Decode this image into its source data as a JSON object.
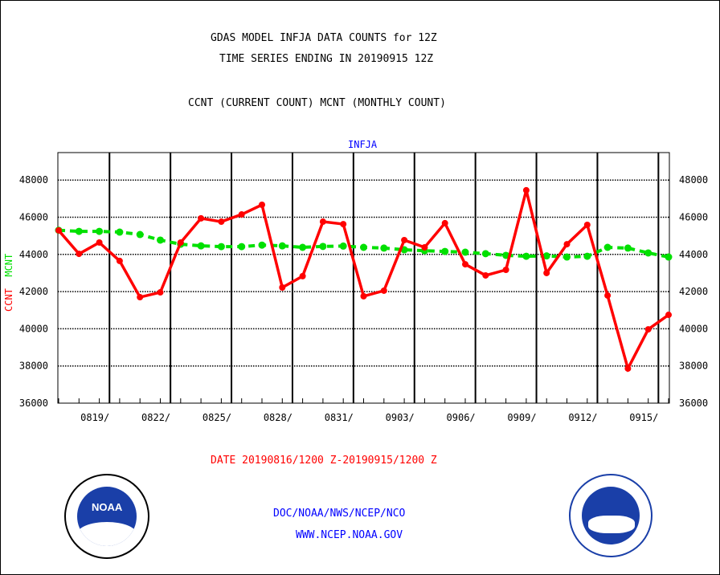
{
  "chart_data": {
    "type": "line",
    "title": [
      "GDAS MODEL INFJA DATA COUNTS for 12Z",
      "TIME SERIES ENDING IN 20190915 12Z"
    ],
    "subtitle": "CCNT (CURRENT COUNT) MCNT (MONTHLY COUNT)",
    "panel_label": "INFJA",
    "ylabel_left": [
      "CCNT",
      "MCNT"
    ],
    "xlabel": "DATE 20190816/1200 Z-20190915/1200 Z",
    "ylim": [
      36000,
      49000
    ],
    "yticks": [
      36000,
      38000,
      40000,
      42000,
      44000,
      46000,
      48000
    ],
    "ytick_labels": [
      "36000",
      "38000",
      "40000",
      "42000",
      "44000",
      "46000",
      "48000"
    ],
    "xtick_labels": [
      "0819/",
      "0822/",
      "0825/",
      "0828/",
      "0831/",
      "0903/",
      "0906/",
      "0909/",
      "0912/",
      "0915/"
    ],
    "grid": true,
    "series": [
      {
        "name": "CCNT",
        "color": "#ff0000",
        "values": [
          45290,
          44030,
          44640,
          43650,
          41700,
          41960,
          44640,
          45940,
          45760,
          46150,
          46670,
          42220,
          42830,
          45760,
          45630,
          41750,
          42050,
          44770,
          44380,
          45680,
          43470,
          42870,
          43170,
          47450,
          43000,
          44550,
          45590,
          41790,
          37860,
          39970,
          40750
        ]
      },
      {
        "name": "MCNT",
        "color": "#00e000",
        "values": [
          45300,
          45240,
          45240,
          45200,
          45070,
          44770,
          44550,
          44460,
          44420,
          44420,
          44500,
          44460,
          44380,
          44430,
          44450,
          44380,
          44340,
          44250,
          44200,
          44160,
          44120,
          44040,
          43950,
          43900,
          43920,
          43860,
          43900,
          44380,
          44340,
          44080,
          43860
        ]
      }
    ]
  },
  "footer": {
    "line1": "DOC/NOAA/NWS/NCEP/NCO",
    "line2": "WWW.NCEP.NOAA.GOV"
  },
  "logos": {
    "left": "NOAA",
    "right": "NATIONAL WEATHER SERVICE"
  }
}
